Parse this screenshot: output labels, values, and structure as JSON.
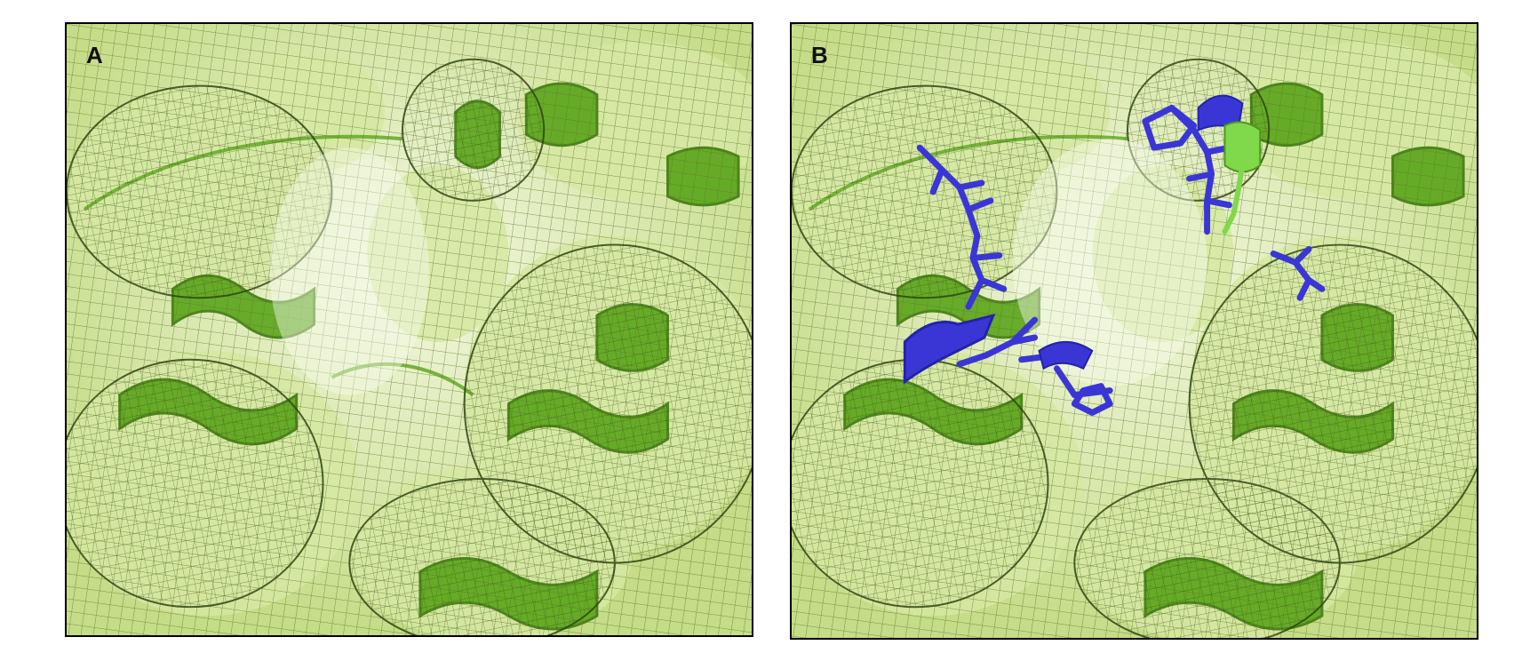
{
  "figure": {
    "panels": [
      {
        "label": "A",
        "has_ligand": false
      },
      {
        "label": "B",
        "has_ligand": true
      }
    ],
    "colors": {
      "surface_light": "#eef5d4",
      "surface_mid": "#c9e08a",
      "mesh": "#5d7a2a",
      "mesh_dark": "#2f4512",
      "helix": "#5aa51a",
      "helix_dark": "#3f7a0e",
      "ligand": "#3a36d6",
      "ligand_dark": "#2323a8",
      "frame": "#000000",
      "background": "#ffffff"
    }
  }
}
